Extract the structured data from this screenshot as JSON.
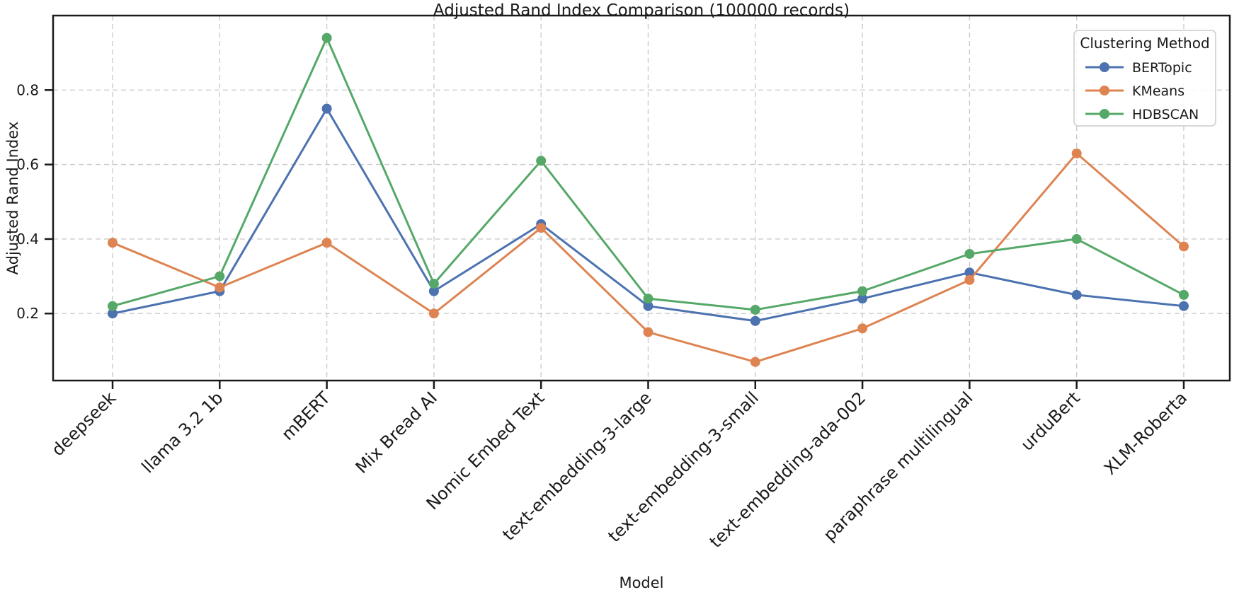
{
  "figure": {
    "title": "Adjusted Rand Index Comparison (100000 records)"
  },
  "chart_data": {
    "type": "line",
    "title": "Adjusted Rand Index Comparison (100000 records)",
    "xlabel": "Model",
    "ylabel": "Adjusted Rand Index",
    "categories": [
      "deepseek",
      "llama 3.2 1b",
      "mBERT",
      "Mix Bread AI",
      "Nomic Embed Text",
      "text-embedding-3-large",
      "text-embedding-3-small",
      "text-embedding-ada-002",
      "paraphrase multilingual",
      "urduBert",
      "XLM-Roberta"
    ],
    "series": [
      {
        "name": "BERTopic",
        "color": "#4C72B0",
        "values": [
          0.2,
          0.26,
          0.75,
          0.26,
          0.44,
          0.22,
          0.18,
          0.24,
          0.31,
          0.25,
          0.22
        ]
      },
      {
        "name": "KMeans",
        "color": "#DD8452",
        "values": [
          0.39,
          0.27,
          0.39,
          0.2,
          0.43,
          0.15,
          0.07,
          0.16,
          0.29,
          0.63,
          0.38
        ]
      },
      {
        "name": "HDBSCAN",
        "color": "#55A868",
        "values": [
          0.22,
          0.3,
          0.94,
          0.28,
          0.61,
          0.24,
          0.21,
          0.26,
          0.36,
          0.4,
          0.25
        ]
      }
    ],
    "yticks": [
      0.2,
      0.4,
      0.6,
      0.8
    ],
    "ylim": [
      0.02,
      1.0
    ],
    "grid": true,
    "grid_style": "dashed",
    "marker": "circle",
    "legend": {
      "title": "Clustering Method",
      "position": "upper right"
    }
  },
  "colors": {
    "background": "#ffffff",
    "spine": "#1a1a1a",
    "grid": "#cccccc",
    "legend_border": "#cccccc",
    "text": "#1a1a1a"
  }
}
